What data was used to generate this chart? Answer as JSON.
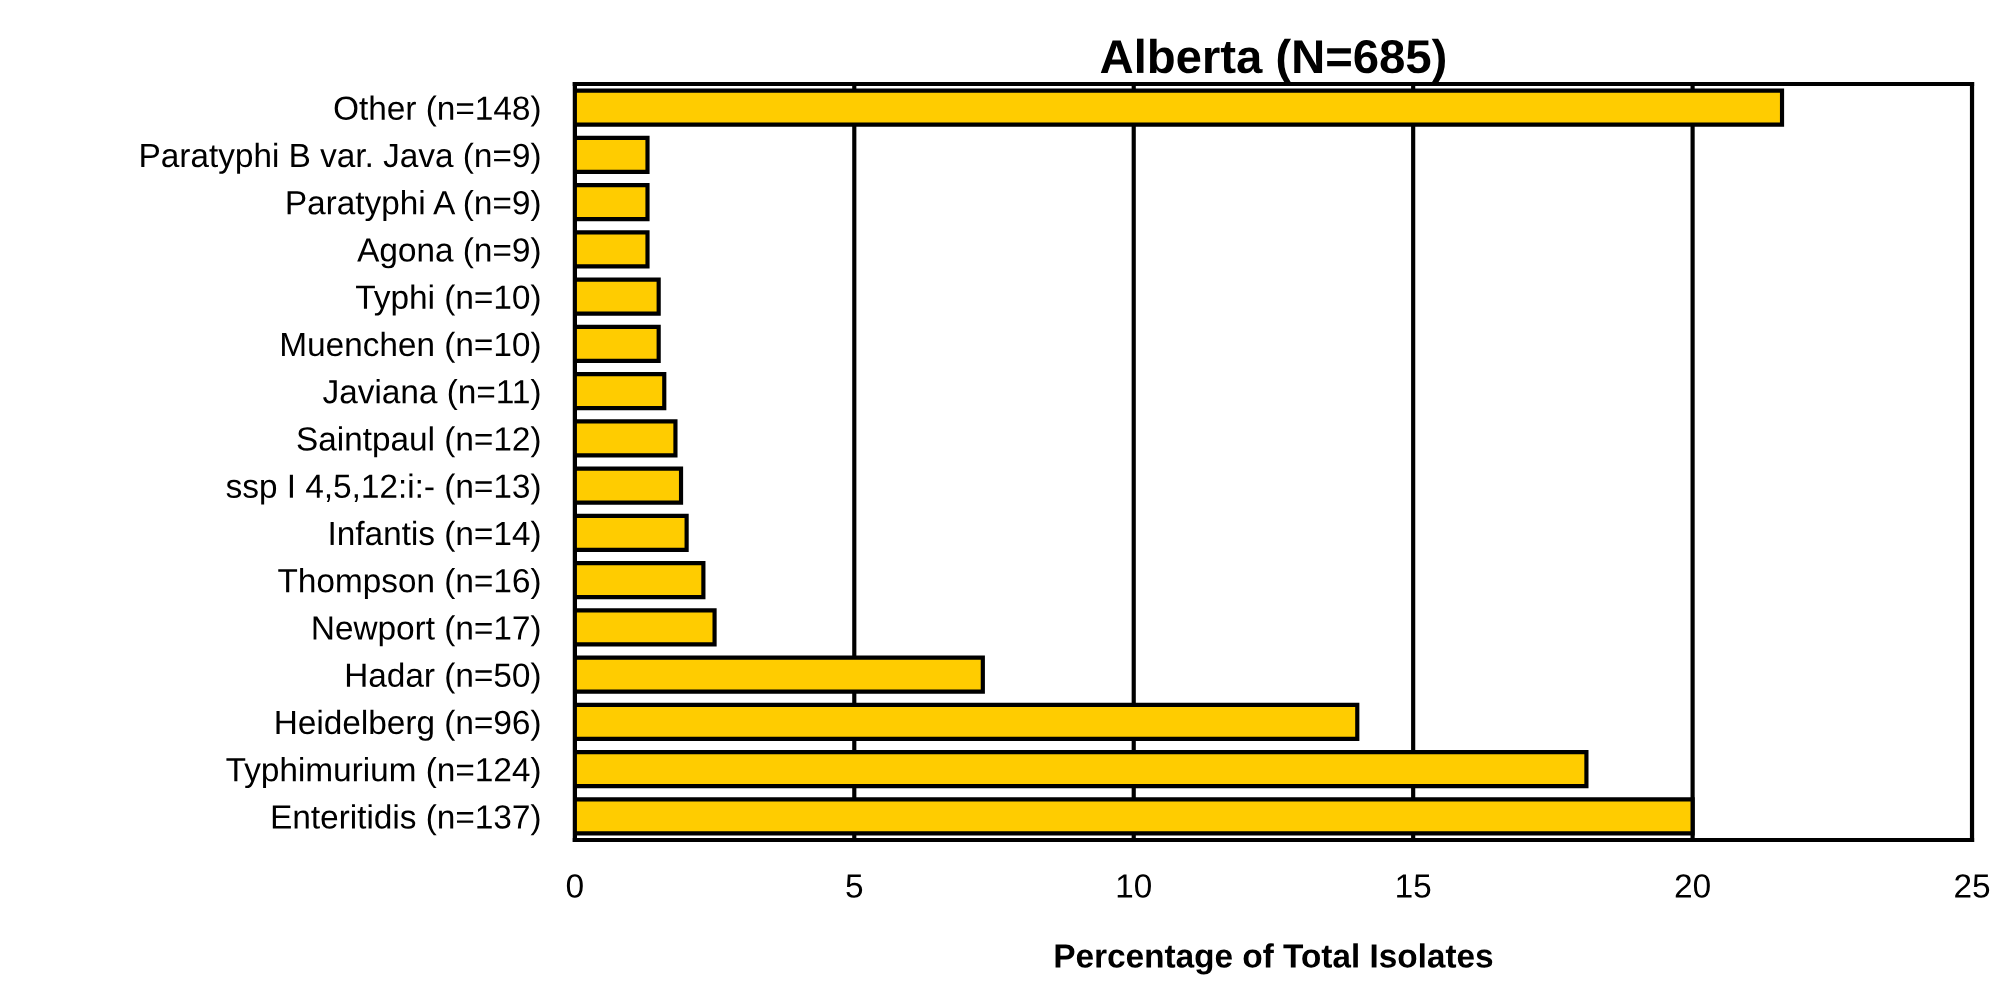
{
  "chart_data": {
    "type": "bar",
    "orientation": "horizontal",
    "title": "Alberta (N=685)",
    "xlabel": "Percentage of Total Isolates",
    "categories": [
      "Other (n=148)",
      "Paratyphi B var. Java (n=9)",
      "Paratyphi A (n=9)",
      "Agona (n=9)",
      "Typhi (n=10)",
      "Muenchen (n=10)",
      "Javiana (n=11)",
      "Saintpaul (n=12)",
      "ssp I 4,5,12:i:- (n=13)",
      "Infantis (n=14)",
      "Thompson (n=16)",
      "Newport (n=17)",
      "Hadar (n=50)",
      "Heidelberg (n=96)",
      "Typhimurium (n=124)",
      "Enteritidis (n=137)"
    ],
    "values": [
      21.6,
      1.3,
      1.3,
      1.3,
      1.5,
      1.5,
      1.6,
      1.8,
      1.9,
      2.0,
      2.3,
      2.5,
      7.3,
      14.0,
      18.1,
      20.0
    ],
    "color": "#ffcc00",
    "xlim": [
      0,
      25
    ],
    "xticks": [
      0,
      5,
      10,
      15,
      20,
      25
    ],
    "grid": "x"
  }
}
